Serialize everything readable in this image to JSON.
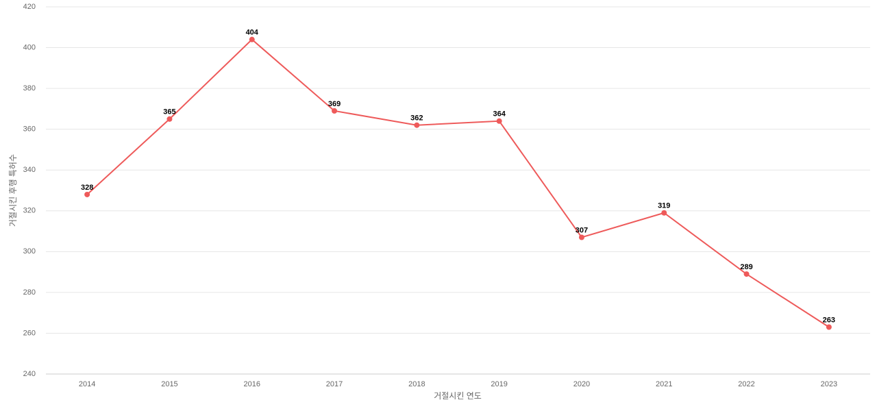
{
  "chart_data": {
    "type": "line",
    "x_label": "거절시킨 연도",
    "y_label": "거절시킨 후행 특허수",
    "categories": [
      "2014",
      "2015",
      "2016",
      "2017",
      "2018",
      "2019",
      "2020",
      "2021",
      "2022",
      "2023"
    ],
    "values": [
      328,
      365,
      404,
      369,
      362,
      364,
      307,
      319,
      289,
      263
    ],
    "color": "#ee5a5a",
    "ylim": [
      240,
      420
    ],
    "yticks": [
      240,
      260,
      280,
      300,
      320,
      340,
      360,
      380,
      400,
      420
    ],
    "grid": true
  }
}
